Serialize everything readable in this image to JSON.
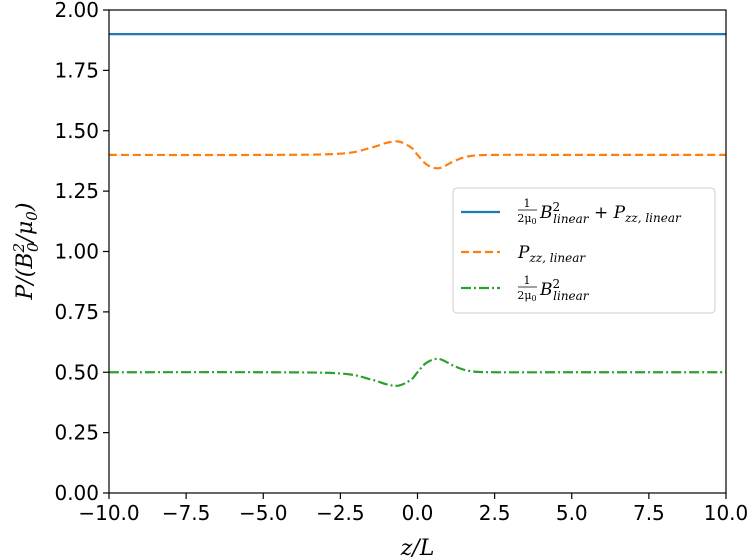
{
  "chart_data": {
    "type": "line",
    "xlabel": "z/L",
    "ylabel": "P/(B_0^2/μ_0)",
    "xlim": [
      -10.0,
      10.0
    ],
    "ylim": [
      0.0,
      2.0
    ],
    "x_ticks": [
      "−10.0",
      "−7.5",
      "−5.0",
      "−2.5",
      "0.0",
      "2.5",
      "5.0",
      "7.5",
      "10.0"
    ],
    "y_ticks": [
      "0.00",
      "0.25",
      "0.50",
      "0.75",
      "1.00",
      "1.25",
      "1.50",
      "1.75",
      "2.00"
    ],
    "grid": false,
    "legend_position": "center-right",
    "series": [
      {
        "name": "(1/2μ0) B²_linear + P_zz,linear",
        "color": "#1f77b4",
        "style": "solid",
        "x": [
          -10,
          -5,
          -2.5,
          -1.5,
          -1,
          -0.6,
          0,
          0.7,
          1.5,
          2.5,
          5,
          10
        ],
        "y": [
          1.9,
          1.9,
          1.9,
          1.9,
          1.9,
          1.9,
          1.9,
          1.9,
          1.9,
          1.9,
          1.9,
          1.9
        ]
      },
      {
        "name": "P_zz,linear",
        "color": "#ff7f0e",
        "style": "dashed",
        "x": [
          -10,
          -5,
          -2.5,
          -1.5,
          -1,
          -0.6,
          -0.2,
          0,
          0.3,
          0.7,
          1.2,
          1.7,
          2.5,
          5,
          10
        ],
        "y": [
          1.4,
          1.4,
          1.405,
          1.43,
          1.45,
          1.455,
          1.43,
          1.4,
          1.36,
          1.345,
          1.375,
          1.395,
          1.4,
          1.4,
          1.4
        ]
      },
      {
        "name": "(1/2μ0) B²_linear",
        "color": "#2ca02c",
        "style": "dashdot",
        "x": [
          -10,
          -5,
          -2.5,
          -1.5,
          -1,
          -0.6,
          -0.2,
          0,
          0.3,
          0.7,
          1.2,
          1.7,
          2.5,
          5,
          10
        ],
        "y": [
          0.5,
          0.5,
          0.495,
          0.47,
          0.45,
          0.445,
          0.47,
          0.5,
          0.54,
          0.555,
          0.525,
          0.505,
          0.5,
          0.5,
          0.5
        ]
      }
    ]
  }
}
